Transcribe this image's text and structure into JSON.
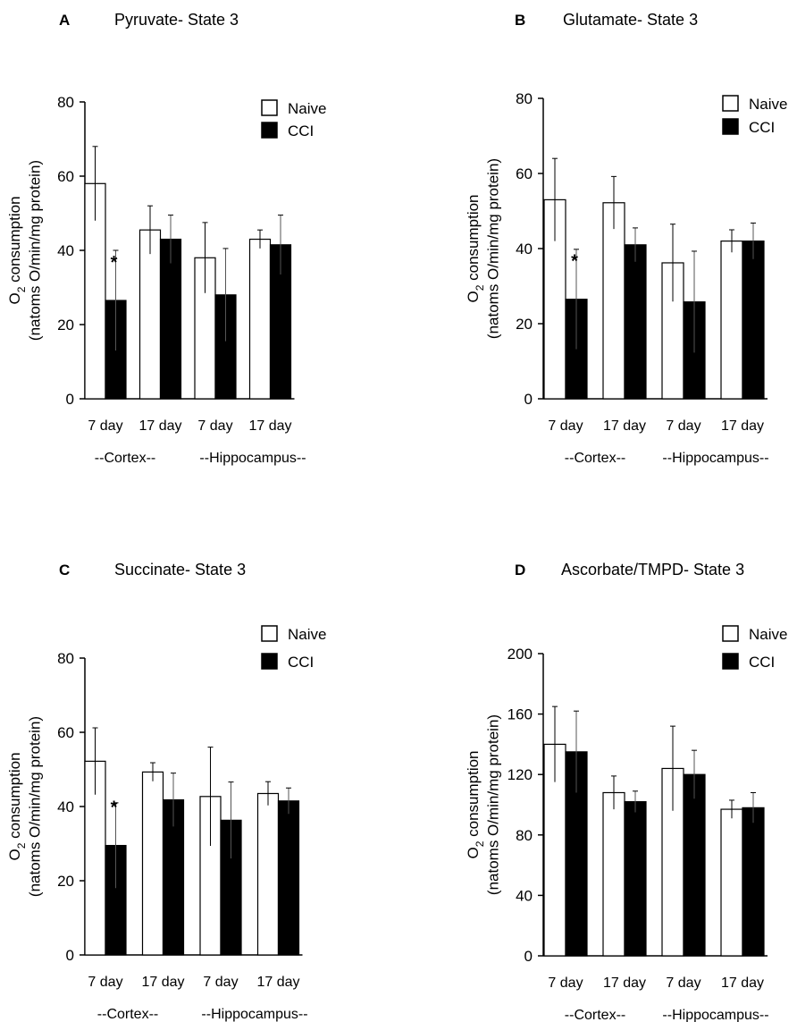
{
  "figure": {
    "legend": {
      "naive_label": "Naive",
      "cci_label": "CCI",
      "naive_color": "#ffffff",
      "cci_color": "#000000"
    }
  },
  "chart_data": [
    {
      "panel": "A",
      "type": "bar",
      "title": "Pyruvate- State 3",
      "ylabel_main": "O",
      "ylabel_sub": "2",
      "ylabel_rest": " consumption",
      "ylabel_line2": "(natoms O/min/mg protein)",
      "ylim": [
        0,
        80
      ],
      "yticks": [
        0,
        20,
        40,
        60,
        80
      ],
      "categories": [
        "7 day",
        "17 day",
        "7 day",
        "17 day"
      ],
      "groups": [
        "--Cortex--",
        "--Hippocampus--"
      ],
      "significance": [
        "*",
        "",
        "",
        ""
      ],
      "series": [
        {
          "name": "Naive",
          "values": [
            58,
            45.5,
            38,
            43
          ],
          "errors": [
            10,
            6.5,
            9.5,
            2.5
          ]
        },
        {
          "name": "CCI",
          "values": [
            26.5,
            43,
            28,
            41.5
          ],
          "errors": [
            13.5,
            6.5,
            12.5,
            8
          ]
        }
      ]
    },
    {
      "panel": "B",
      "type": "bar",
      "title": "Glutamate- State 3",
      "ylabel_main": "O",
      "ylabel_sub": "2",
      "ylabel_rest": " consumption",
      "ylabel_line2": "(natoms O/min/mg protein)",
      "ylim": [
        0,
        80
      ],
      "yticks": [
        0,
        20,
        40,
        60,
        80
      ],
      "categories": [
        "7 day",
        "17 day",
        "7 day",
        "17 day"
      ],
      "groups": [
        "--Cortex--",
        "--Hippocampus--"
      ],
      "significance": [
        "*",
        "",
        "",
        ""
      ],
      "series": [
        {
          "name": "Naive",
          "values": [
            53,
            52.2,
            36.2,
            42
          ],
          "errors": [
            11,
            7,
            10.3,
            3
          ]
        },
        {
          "name": "CCI",
          "values": [
            26.5,
            41,
            25.8,
            42
          ],
          "errors": [
            13.3,
            4.5,
            13.5,
            4.8
          ]
        }
      ]
    },
    {
      "panel": "C",
      "type": "bar",
      "title": "Succinate- State 3",
      "ylabel_main": "O",
      "ylabel_sub": "2",
      "ylabel_rest": " consumption",
      "ylabel_line2": "(natoms O/min/mg protein)",
      "ylim": [
        0,
        80
      ],
      "yticks": [
        0,
        20,
        40,
        60,
        80
      ],
      "categories": [
        "7 day",
        "17 day",
        "7 day",
        "17 day"
      ],
      "groups": [
        "--Cortex--",
        "--Hippocampus--"
      ],
      "significance": [
        "*",
        "",
        "",
        ""
      ],
      "series": [
        {
          "name": "Naive",
          "values": [
            52.2,
            49.3,
            42.7,
            43.5
          ],
          "errors": [
            9,
            2.5,
            13.3,
            3.2
          ]
        },
        {
          "name": "CCI",
          "values": [
            29.5,
            41.8,
            36.3,
            41.5
          ],
          "errors": [
            11.5,
            7.2,
            10.3,
            3.5
          ]
        }
      ]
    },
    {
      "panel": "D",
      "type": "bar",
      "title": "Ascorbate/TMPD- State 3",
      "ylabel_main": "O",
      "ylabel_sub": "2",
      "ylabel_rest": " consumption",
      "ylabel_line2": "(natoms O/min/mg protein)",
      "ylim": [
        0,
        200
      ],
      "yticks": [
        0,
        40,
        80,
        120,
        160,
        200
      ],
      "categories": [
        "7 day",
        "17 day",
        "7 day",
        "17 day"
      ],
      "groups": [
        "--Cortex--",
        "--Hippocampus--"
      ],
      "significance": [
        "",
        "",
        "",
        ""
      ],
      "series": [
        {
          "name": "Naive",
          "values": [
            140,
            108,
            124,
            97
          ],
          "errors": [
            25,
            11,
            28,
            6
          ]
        },
        {
          "name": "CCI",
          "values": [
            135,
            102,
            120,
            98
          ],
          "errors": [
            27,
            7,
            16,
            10
          ]
        }
      ]
    }
  ]
}
